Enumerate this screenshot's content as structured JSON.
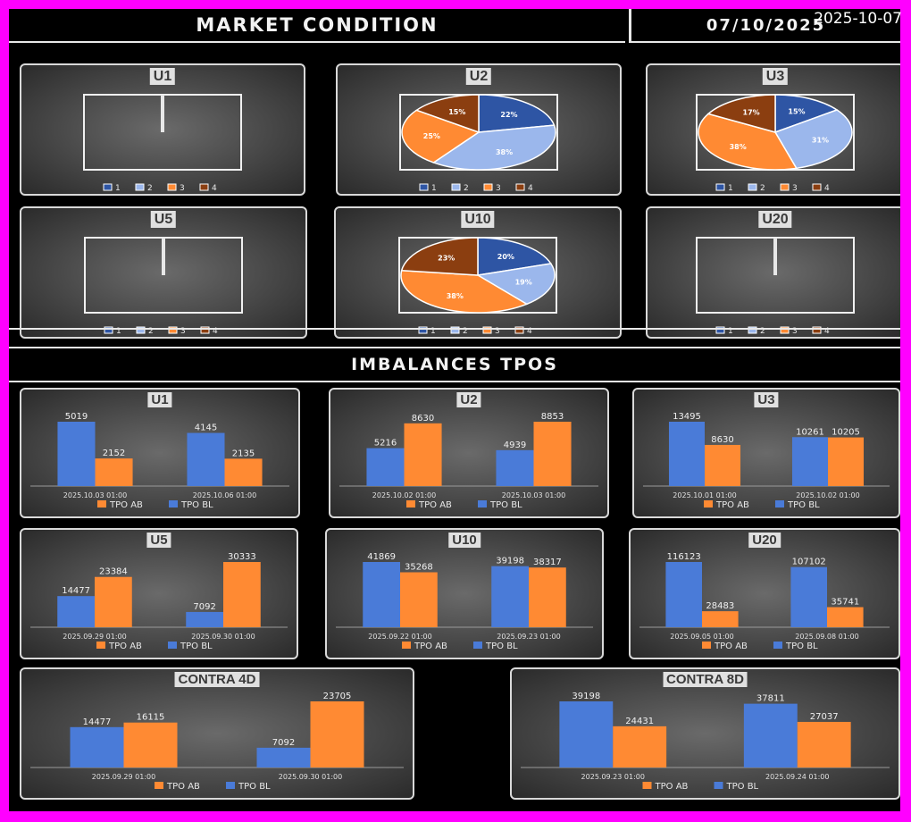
{
  "stamp": "2025-10-07",
  "header": {
    "title": "MARKET CONDITION",
    "date": "07/10/2025"
  },
  "section_title": "IMBALANCES TPOS",
  "colors": {
    "c1": "#2e55a4",
    "c2": "#9bb7ec",
    "c3": "#ff8a33",
    "c4": "#8b3e10",
    "tpo_ab": "#ff8a33",
    "tpo_bl": "#4a7bd8"
  },
  "pie_legend": [
    "1",
    "2",
    "3",
    "4"
  ],
  "bar_legend": [
    "TPO AB",
    "TPO BL"
  ],
  "chart_data": [
    {
      "id": "pie-u1",
      "type": "pie",
      "title": "U1",
      "values": [],
      "labels": []
    },
    {
      "id": "pie-u2",
      "type": "pie",
      "title": "U2",
      "categories": [
        "1",
        "2",
        "3",
        "4"
      ],
      "values": [
        22,
        38,
        25,
        15
      ],
      "labels": [
        "22%",
        "38%",
        "25%",
        "15%"
      ]
    },
    {
      "id": "pie-u3",
      "type": "pie",
      "title": "U3",
      "categories": [
        "1",
        "2",
        "3",
        "4"
      ],
      "values": [
        15,
        31,
        38,
        17
      ],
      "labels": [
        "15%",
        "31%",
        "38%",
        "17%"
      ]
    },
    {
      "id": "pie-u5",
      "type": "pie",
      "title": "U5",
      "values": [],
      "labels": []
    },
    {
      "id": "pie-u10",
      "type": "pie",
      "title": "U10",
      "categories": [
        "1",
        "2",
        "3",
        "4"
      ],
      "values": [
        20,
        19,
        38,
        23
      ],
      "labels": [
        "20%",
        "19%",
        "38%",
        "23%"
      ]
    },
    {
      "id": "pie-u20",
      "type": "pie",
      "title": "U20",
      "values": [],
      "labels": []
    },
    {
      "id": "bar-u1",
      "type": "bar",
      "title": "U1",
      "categories": [
        "2025.10.03 01:00",
        "2025.10.06 01:00"
      ],
      "series": [
        {
          "name": "TPO BL",
          "values": [
            5019,
            4145
          ]
        },
        {
          "name": "TPO AB",
          "values": [
            2152,
            2135
          ]
        }
      ]
    },
    {
      "id": "bar-u2",
      "type": "bar",
      "title": "U2",
      "categories": [
        "2025.10.02 01:00",
        "2025.10.03 01:00"
      ],
      "series": [
        {
          "name": "TPO BL",
          "values": [
            5216,
            4939
          ]
        },
        {
          "name": "TPO AB",
          "values": [
            8630,
            8853
          ]
        }
      ]
    },
    {
      "id": "bar-u3",
      "type": "bar",
      "title": "U3",
      "categories": [
        "2025.10.01 01:00",
        "2025.10.02 01:00"
      ],
      "series": [
        {
          "name": "TPO BL",
          "values": [
            13495,
            10261
          ]
        },
        {
          "name": "TPO AB",
          "values": [
            8630,
            10205
          ]
        }
      ]
    },
    {
      "id": "bar-u5",
      "type": "bar",
      "title": "U5",
      "categories": [
        "2025.09.29 01:00",
        "2025.09.30 01:00"
      ],
      "series": [
        {
          "name": "TPO BL",
          "values": [
            14477,
            7092
          ]
        },
        {
          "name": "TPO AB",
          "values": [
            23384,
            30333
          ]
        }
      ]
    },
    {
      "id": "bar-u10",
      "type": "bar",
      "title": "U10",
      "categories": [
        "2025.09.22 01:00",
        "2025.09.23 01:00"
      ],
      "series": [
        {
          "name": "TPO BL",
          "values": [
            41869,
            39198
          ]
        },
        {
          "name": "TPO AB",
          "values": [
            35268,
            38317
          ]
        }
      ]
    },
    {
      "id": "bar-u20",
      "type": "bar",
      "title": "U20",
      "categories": [
        "2025.09.05 01:00",
        "2025.09.08 01:00"
      ],
      "series": [
        {
          "name": "TPO BL",
          "values": [
            116123,
            107102
          ]
        },
        {
          "name": "TPO AB",
          "values": [
            28483,
            35741
          ]
        }
      ]
    },
    {
      "id": "bar-c4",
      "type": "bar",
      "title": "CONTRA 4D",
      "categories": [
        "2025.09.29 01:00",
        "2025.09.30 01:00"
      ],
      "series": [
        {
          "name": "TPO BL",
          "values": [
            14477,
            7092
          ]
        },
        {
          "name": "TPO AB",
          "values": [
            16115,
            23705
          ]
        }
      ]
    },
    {
      "id": "bar-c8",
      "type": "bar",
      "title": "CONTRA 8D",
      "categories": [
        "2025.09.23 01:00",
        "2025.09.24 01:00"
      ],
      "series": [
        {
          "name": "TPO BL",
          "values": [
            39198,
            37811
          ]
        },
        {
          "name": "TPO AB",
          "values": [
            24431,
            27037
          ]
        }
      ]
    }
  ]
}
